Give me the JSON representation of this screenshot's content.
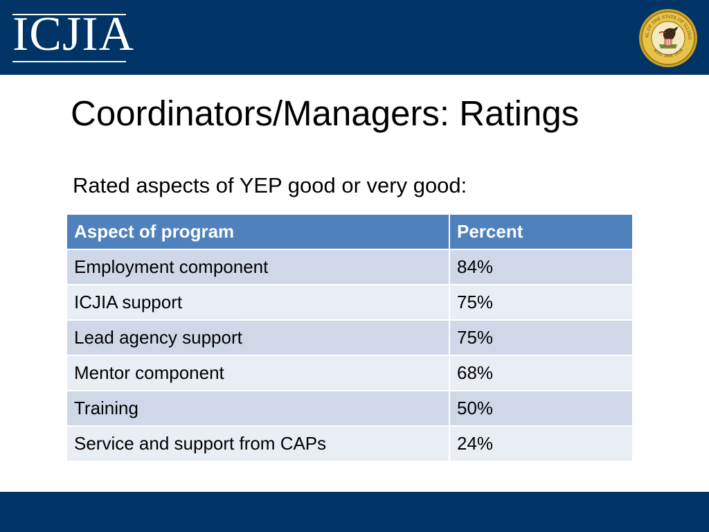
{
  "header": {
    "logo_text": "ICJIA",
    "seal_text": "SEAL OF THE STATE OF ILLINOIS",
    "seal_date": "AUG. 26th 1818"
  },
  "slide": {
    "title": "Coordinators/Managers: Ratings",
    "subtitle": "Rated aspects of YEP good or very good:"
  },
  "table": {
    "columns": [
      "Aspect of program",
      "Percent"
    ],
    "rows": [
      [
        "Employment component",
        "84%"
      ],
      [
        "ICJIA support",
        "75%"
      ],
      [
        "Lead agency support",
        "75%"
      ],
      [
        "Mentor component",
        "68%"
      ],
      [
        "Training",
        "50%"
      ],
      [
        "Service and support from CAPs",
        "24%"
      ]
    ]
  },
  "colors": {
    "band": "#003366",
    "table_header": "#4f81bd",
    "row_dark": "#d0d8e8",
    "row_light": "#e9edf4"
  }
}
